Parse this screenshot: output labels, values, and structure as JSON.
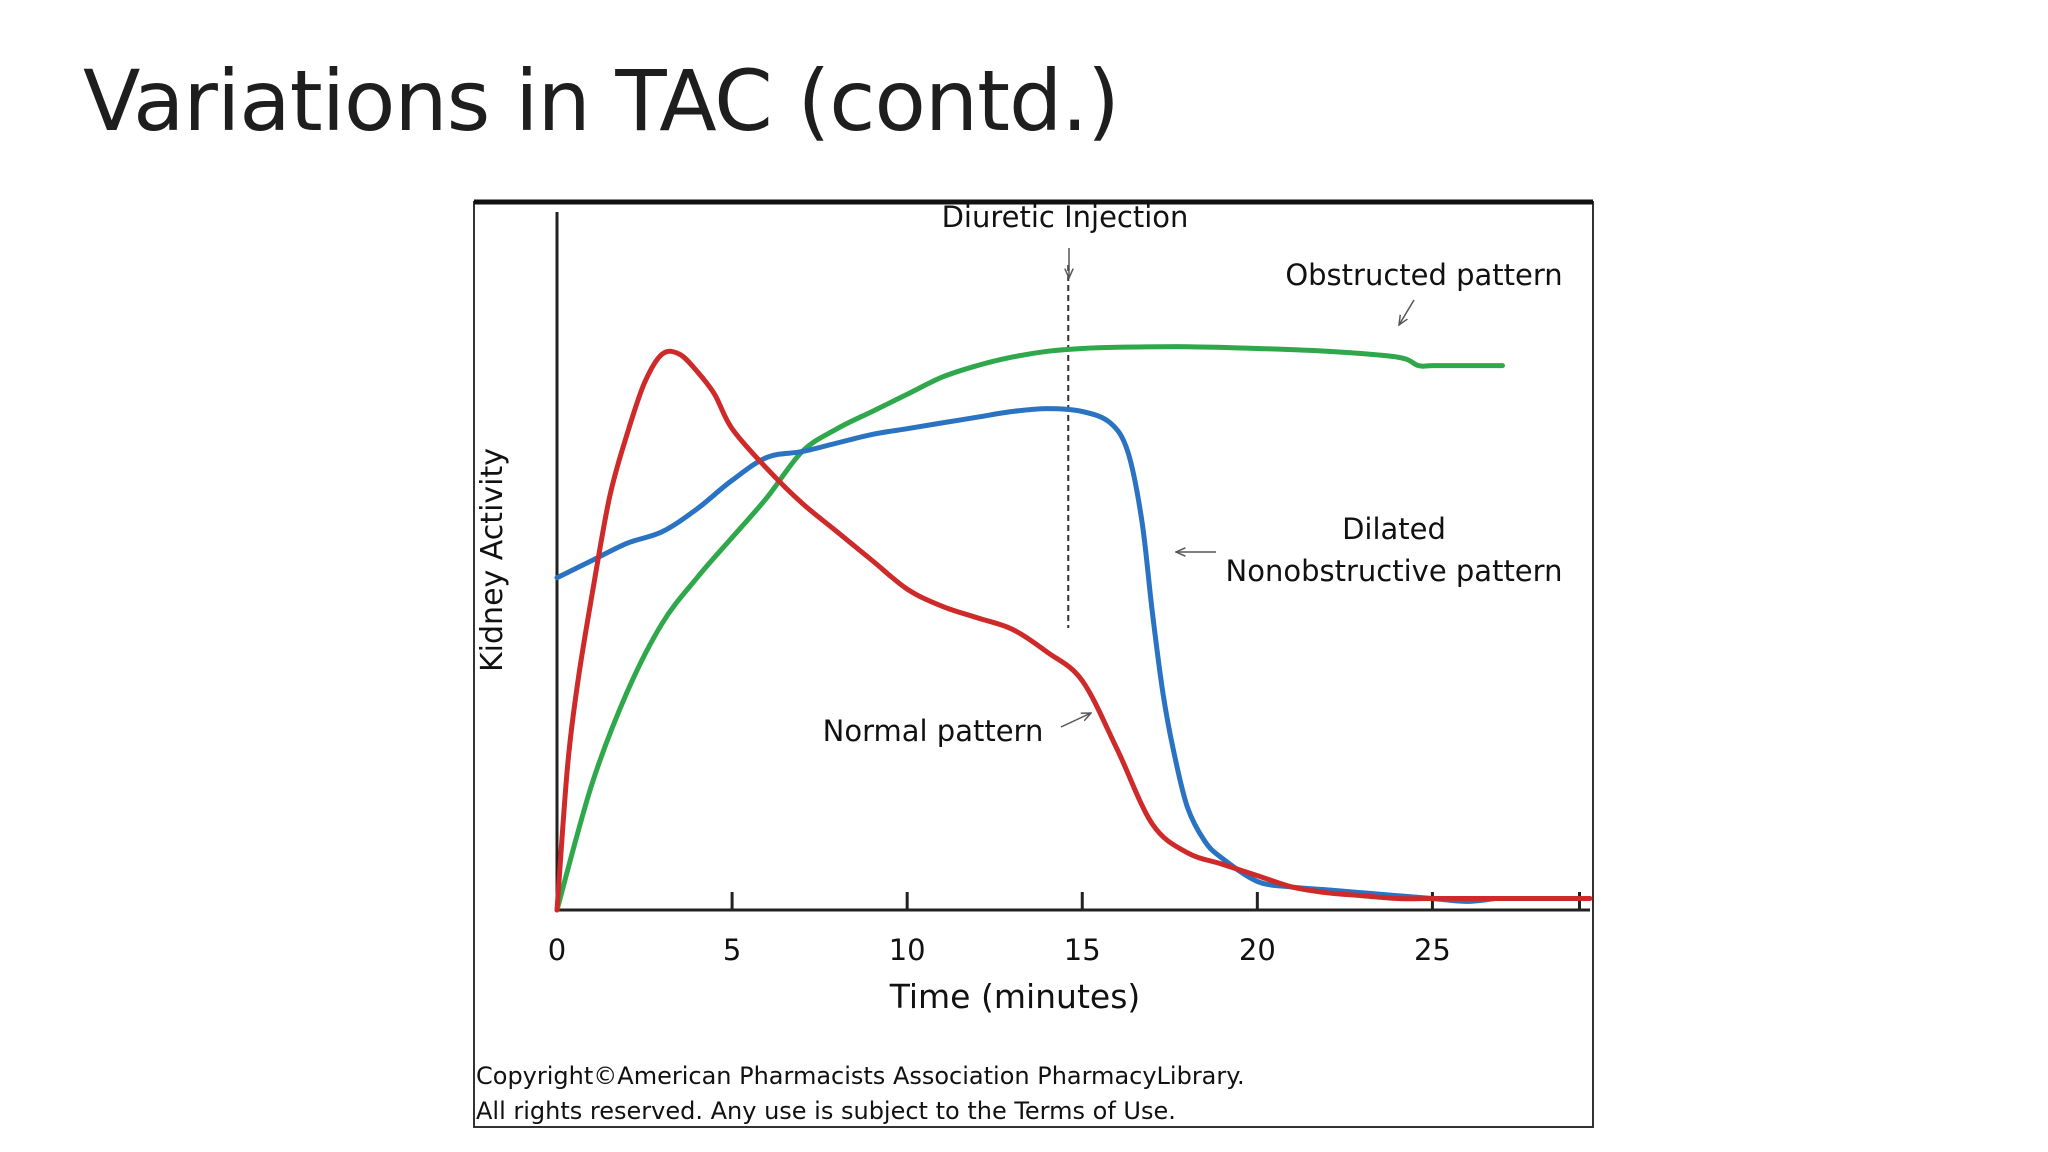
{
  "slide": {
    "title": "Variations in TAC (contd.)"
  },
  "chart_data": {
    "type": "line",
    "xlabel": "Time (minutes)",
    "ylabel": "Kidney Activity",
    "xlim": [
      0,
      29.5
    ],
    "ylim": [
      0,
      100
    ],
    "xticks": [
      0,
      5,
      10,
      15,
      20,
      25
    ],
    "grid": false,
    "series": [
      {
        "name": "Normal pattern",
        "color": "#cf2a2a",
        "x": [
          0,
          0.3,
          0.6,
          1,
          1.5,
          2,
          2.5,
          3,
          3.5,
          4,
          4.5,
          5,
          6,
          7,
          8,
          9,
          10,
          11,
          12,
          13,
          14,
          15,
          16,
          17,
          18,
          19,
          20,
          21,
          22,
          23,
          24,
          25,
          26,
          27,
          28,
          29.5
        ],
        "values": [
          0,
          25,
          40,
          55,
          72,
          83,
          92,
          97,
          97,
          94,
          90,
          84,
          77,
          71,
          66,
          61,
          56,
          53,
          51,
          49,
          45,
          40,
          28,
          15,
          10,
          8,
          6,
          4,
          3,
          2.5,
          2,
          2,
          2,
          2,
          2,
          2
        ]
      },
      {
        "name": "Dilated Nonobstructive pattern",
        "color": "#2a72c2",
        "x": [
          0,
          1,
          2,
          3,
          4,
          5,
          6,
          7,
          8,
          9,
          10,
          11,
          12,
          13,
          14,
          15,
          15.8,
          16.3,
          16.7,
          17,
          17.3,
          17.6,
          18,
          18.5,
          19,
          20,
          21,
          22,
          23,
          24,
          25,
          26,
          26.8
        ],
        "values": [
          58,
          61,
          64,
          66,
          70,
          75,
          79,
          80,
          81.5,
          83,
          84,
          85,
          86,
          87,
          87.5,
          87,
          85,
          80,
          68,
          52,
          38,
          28,
          18,
          12,
          9,
          5,
          4,
          3.5,
          3,
          2.5,
          2,
          1.5,
          2
        ]
      },
      {
        "name": "Obstructed pattern",
        "color": "#2ea84a",
        "x": [
          0,
          1,
          2,
          3,
          4,
          5,
          6,
          7,
          8,
          9,
          10,
          11,
          12,
          13,
          14,
          15,
          16,
          18,
          20,
          22,
          24,
          24.6,
          25,
          26,
          27
        ],
        "values": [
          0,
          22,
          38,
          50,
          58,
          65,
          72,
          80,
          84,
          87,
          90,
          93,
          95,
          96.5,
          97.5,
          98,
          98.2,
          98.3,
          98,
          97.5,
          96.5,
          95,
          95,
          95,
          95
        ]
      }
    ],
    "annotations": {
      "diuretic_label": "Diuretic Injection",
      "diuretic_x": 14.6,
      "obstructed_label": "Obstructed pattern",
      "dilated_label_line1": "Dilated",
      "dilated_label_line2": "Nonobstructive pattern",
      "normal_label": "Normal pattern"
    },
    "copyright_line1": "Copyright©American Pharmacists Association PharmacyLibrary.",
    "copyright_line2": "All rights reserved. Any use is subject to the Terms of Use."
  }
}
